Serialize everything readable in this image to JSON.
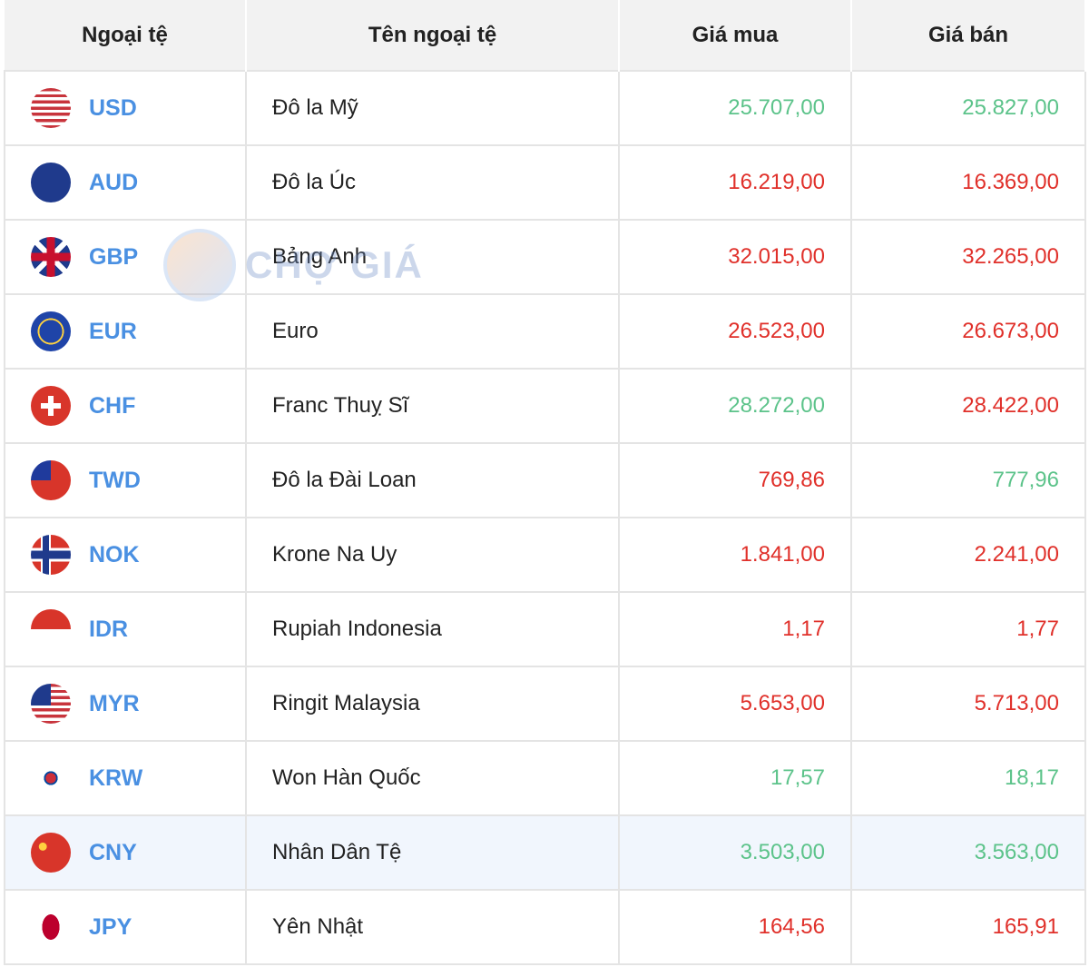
{
  "headers": [
    "Ngoại tệ",
    "Tên ngoại tệ",
    "Giá mua",
    "Giá bán"
  ],
  "watermark": "CHỢ GIÁ",
  "colors": {
    "up": "#5cc38a",
    "down": "#e0302a",
    "code": "#4a90e2",
    "highlight": "#f1f6fd"
  },
  "rows": [
    {
      "code": "USD",
      "name": "Đô la Mỹ",
      "buy": "25.707,00",
      "sell": "25.827,00",
      "buy_trend": "up",
      "sell_trend": "up",
      "flag": "us-flag-icon"
    },
    {
      "code": "AUD",
      "name": "Đô la Úc",
      "buy": "16.219,00",
      "sell": "16.369,00",
      "buy_trend": "down",
      "sell_trend": "down",
      "flag": "au-flag-icon"
    },
    {
      "code": "GBP",
      "name": "Bảng Anh",
      "buy": "32.015,00",
      "sell": "32.265,00",
      "buy_trend": "down",
      "sell_trend": "down",
      "flag": "gb-flag-icon"
    },
    {
      "code": "EUR",
      "name": "Euro",
      "buy": "26.523,00",
      "sell": "26.673,00",
      "buy_trend": "down",
      "sell_trend": "down",
      "flag": "eu-flag-icon"
    },
    {
      "code": "CHF",
      "name": "Franc Thuỵ Sĩ",
      "buy": "28.272,00",
      "sell": "28.422,00",
      "buy_trend": "up",
      "sell_trend": "down",
      "flag": "ch-flag-icon"
    },
    {
      "code": "TWD",
      "name": "Đô la Đài Loan",
      "buy": "769,86",
      "sell": "777,96",
      "buy_trend": "down",
      "sell_trend": "up",
      "flag": "tw-flag-icon"
    },
    {
      "code": "NOK",
      "name": "Krone Na Uy",
      "buy": "1.841,00",
      "sell": "2.241,00",
      "buy_trend": "down",
      "sell_trend": "down",
      "flag": "no-flag-icon"
    },
    {
      "code": "IDR",
      "name": "Rupiah Indonesia",
      "buy": "1,17",
      "sell": "1,77",
      "buy_trend": "down",
      "sell_trend": "down",
      "flag": "id-flag-icon"
    },
    {
      "code": "MYR",
      "name": "Ringit Malaysia",
      "buy": "5.653,00",
      "sell": "5.713,00",
      "buy_trend": "down",
      "sell_trend": "down",
      "flag": "my-flag-icon"
    },
    {
      "code": "KRW",
      "name": "Won Hàn Quốc",
      "buy": "17,57",
      "sell": "18,17",
      "buy_trend": "up",
      "sell_trend": "up",
      "flag": "kr-flag-icon"
    },
    {
      "code": "CNY",
      "name": "Nhân Dân Tệ",
      "buy": "3.503,00",
      "sell": "3.563,00",
      "buy_trend": "up",
      "sell_trend": "up",
      "flag": "cn-flag-icon",
      "highlighted": true
    },
    {
      "code": "JPY",
      "name": "Yên Nhật",
      "buy": "164,56",
      "sell": "165,91",
      "buy_trend": "down",
      "sell_trend": "down",
      "flag": "jp-flag-icon"
    }
  ]
}
